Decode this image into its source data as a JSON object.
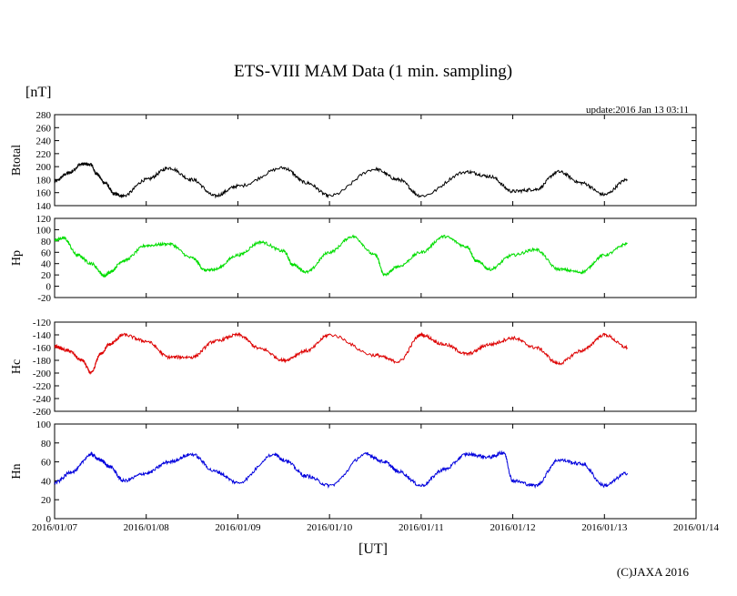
{
  "chart_data": {
    "type": "line",
    "title": "ETS-VIII MAM Data (1 min. sampling)",
    "unit_label": "[nT]",
    "update_text": "update:2016 Jan 13 03:11",
    "xlabel": "[UT]",
    "copyright": "(C)JAXA 2016",
    "x_ticks": [
      "2016/01/07",
      "2016/01/08",
      "2016/01/09",
      "2016/01/10",
      "2016/01/11",
      "2016/01/12",
      "2016/01/13",
      "2016/01/14"
    ],
    "xlim": [
      0,
      7
    ],
    "x_unit": "days since 2016/01/07 00:00 UT",
    "panels": [
      {
        "ylabel": "Btotal",
        "color": "#000000",
        "ylim": [
          140,
          280
        ],
        "yticks": [
          140,
          160,
          180,
          200,
          220,
          240,
          260,
          280
        ],
        "x": [
          0,
          0.15,
          0.3,
          0.4,
          0.45,
          0.55,
          0.65,
          0.75,
          1.0,
          1.25,
          1.5,
          1.75,
          2.0,
          2.5,
          2.75,
          3.0,
          3.5,
          3.75,
          4.0,
          4.5,
          4.75,
          5.0,
          5.25,
          5.5,
          5.75,
          6.0,
          6.25
        ],
        "y": [
          177,
          190,
          204,
          203,
          190,
          175,
          158,
          155,
          180,
          198,
          180,
          155,
          170,
          198,
          175,
          155,
          196,
          180,
          155,
          192,
          185,
          162,
          165,
          192,
          175,
          157,
          180
        ]
      },
      {
        "ylabel": "Hp",
        "color": "#00dd00",
        "ylim": [
          -20,
          120
        ],
        "yticks": [
          -20,
          0,
          20,
          40,
          60,
          80,
          100,
          120
        ],
        "x": [
          0,
          0.1,
          0.25,
          0.4,
          0.55,
          0.6,
          0.75,
          1.0,
          1.25,
          1.5,
          1.65,
          1.75,
          2.0,
          2.25,
          2.5,
          2.6,
          2.75,
          3.0,
          3.25,
          3.5,
          3.6,
          3.75,
          4.0,
          4.25,
          4.5,
          4.6,
          4.75,
          5.0,
          5.25,
          5.5,
          5.75,
          6.0,
          6.25
        ],
        "y": [
          82,
          85,
          55,
          40,
          18,
          25,
          45,
          72,
          75,
          50,
          28,
          30,
          55,
          78,
          62,
          38,
          25,
          60,
          88,
          55,
          20,
          35,
          60,
          88,
          70,
          45,
          30,
          55,
          65,
          30,
          25,
          55,
          75
        ]
      },
      {
        "ylabel": "Hc",
        "color": "#dd0000",
        "ylim": [
          -260,
          -120
        ],
        "yticks": [
          -260,
          -240,
          -220,
          -200,
          -180,
          -160,
          -140,
          -120
        ],
        "x": [
          0,
          0.15,
          0.3,
          0.4,
          0.5,
          0.6,
          0.75,
          1.0,
          1.25,
          1.5,
          1.75,
          2.0,
          2.25,
          2.5,
          2.75,
          3.0,
          3.5,
          3.75,
          4.0,
          4.25,
          4.5,
          4.75,
          5.0,
          5.25,
          5.5,
          5.75,
          6.0,
          6.25
        ],
        "y": [
          -158,
          -165,
          -180,
          -200,
          -170,
          -155,
          -140,
          -150,
          -175,
          -175,
          -150,
          -140,
          -162,
          -180,
          -165,
          -140,
          -172,
          -182,
          -140,
          -155,
          -170,
          -155,
          -145,
          -160,
          -185,
          -165,
          -140,
          -160
        ]
      },
      {
        "ylabel": "Hn",
        "color": "#0000dd",
        "ylim": [
          0,
          100
        ],
        "yticks": [
          0,
          20,
          40,
          60,
          80,
          100
        ],
        "x": [
          0,
          0.2,
          0.4,
          0.5,
          0.6,
          0.75,
          1.0,
          1.25,
          1.5,
          1.75,
          2.0,
          2.4,
          2.5,
          2.75,
          3.0,
          3.4,
          3.6,
          3.75,
          4.0,
          4.25,
          4.5,
          4.75,
          4.9,
          5.0,
          5.25,
          5.5,
          5.75,
          6.0,
          6.25
        ],
        "y": [
          38,
          50,
          68,
          62,
          55,
          40,
          48,
          60,
          68,
          50,
          38,
          68,
          62,
          45,
          35,
          68,
          60,
          50,
          35,
          52,
          68,
          65,
          70,
          40,
          35,
          62,
          58,
          35,
          48
        ]
      }
    ]
  }
}
